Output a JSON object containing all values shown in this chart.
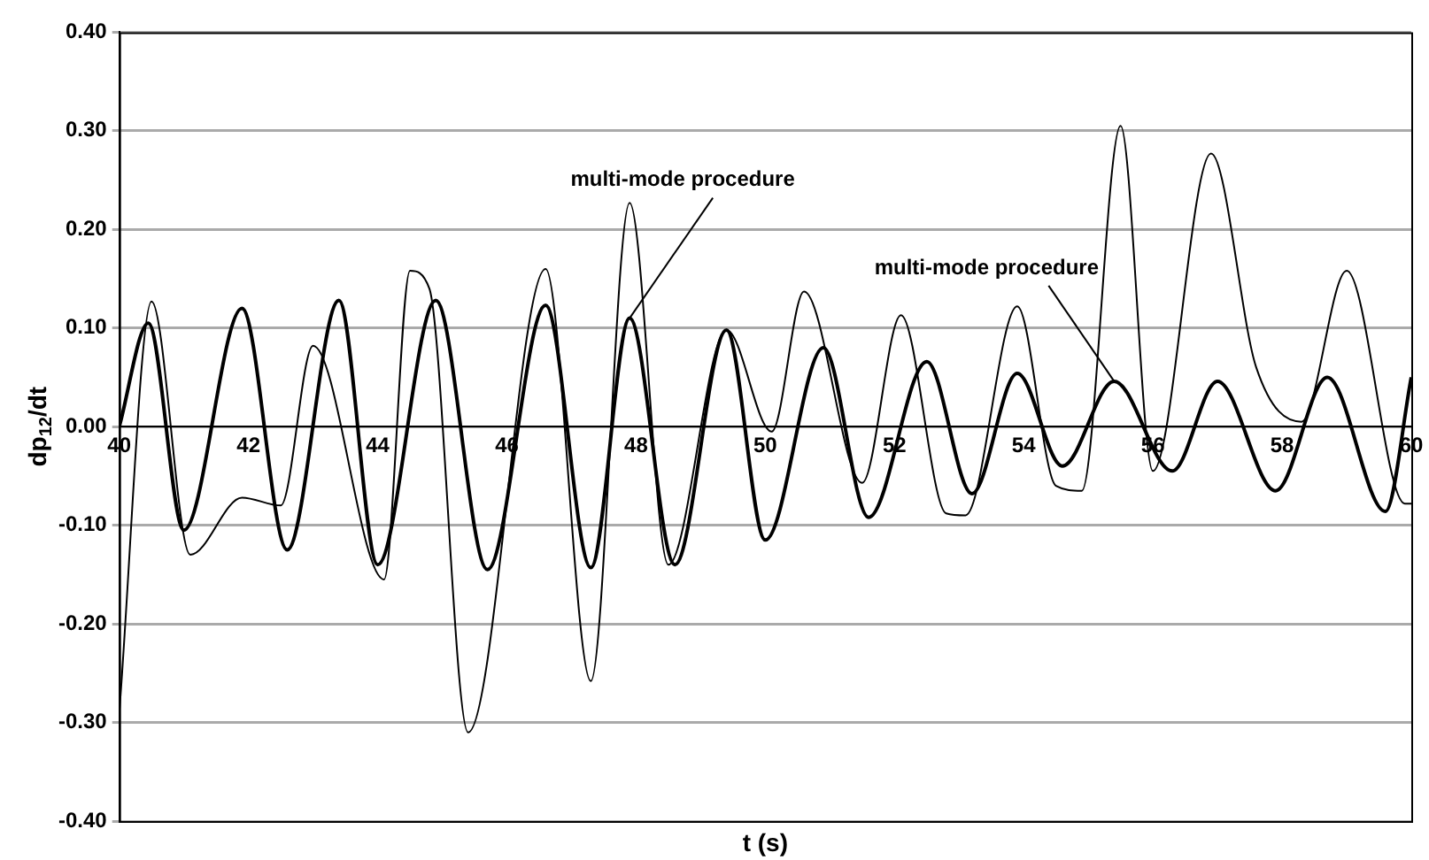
{
  "chart_data": {
    "type": "line",
    "xlabel": "t (s)",
    "ylabel": "dp$_{12}$/dt",
    "xlim": [
      40,
      60
    ],
    "xticks": [
      40,
      42,
      44,
      46,
      48,
      50,
      52,
      54,
      56,
      58,
      60
    ],
    "ylim": [
      -0.4,
      0.4
    ],
    "yticks": [
      {
        "value": -0.4,
        "label": "-0.40"
      },
      {
        "value": -0.3,
        "label": "-0.30"
      },
      {
        "value": -0.2,
        "label": "-0.20"
      },
      {
        "value": -0.1,
        "label": "-0.10"
      },
      {
        "value": 0,
        "label": "0.00"
      },
      {
        "value": 0.1,
        "label": "0.10"
      },
      {
        "value": 0.2,
        "label": "0.20"
      },
      {
        "value": 0.3,
        "label": "0.30"
      },
      {
        "value": 0.4,
        "label": "0.40"
      }
    ],
    "grid": "y",
    "legend": false,
    "marker": "none",
    "line_style": "solid",
    "series": [
      {
        "color": "#000000",
        "x": [
          40,
          40.5,
          41.1,
          41.9,
          42.5,
          43.0,
          44.1,
          44.5,
          44.8,
          45.4,
          46.6,
          47.3,
          47.9,
          48.5,
          49.4,
          50.1,
          50.6,
          51.5,
          52.1,
          52.8,
          53.1,
          53.9,
          54.5,
          54.9,
          55.5,
          56.0,
          56.9,
          57.6,
          58.3,
          59.0,
          59.9,
          60
        ],
        "values": [
          -0.29,
          0.127,
          -0.13,
          -0.072,
          -0.08,
          0.082,
          -0.155,
          0.158,
          0.14,
          -0.31,
          0.16,
          -0.258,
          0.227,
          -0.14,
          0.098,
          -0.005,
          0.137,
          -0.057,
          0.113,
          -0.088,
          -0.09,
          0.122,
          -0.06,
          -0.065,
          0.305,
          -0.045,
          0.277,
          0.06,
          0.005,
          0.158,
          -0.078,
          -0.078
        ]
      },
      {
        "color": "#000000",
        "x": [
          40,
          40.45,
          41.0,
          41.9,
          42.6,
          43.4,
          44.0,
          44.9,
          45.7,
          46.6,
          47.3,
          47.9,
          48.6,
          49.4,
          50.0,
          50.9,
          51.6,
          52.5,
          53.2,
          53.9,
          54.6,
          55.4,
          56.3,
          57.0,
          57.9,
          58.7,
          59.6,
          60
        ],
        "values": [
          0,
          0.105,
          -0.105,
          0.12,
          -0.125,
          0.128,
          -0.14,
          0.128,
          -0.145,
          0.123,
          -0.143,
          0.11,
          -0.14,
          0.098,
          -0.115,
          0.08,
          -0.092,
          0.066,
          -0.068,
          0.054,
          -0.04,
          0.046,
          -0.045,
          0.046,
          -0.065,
          0.05,
          -0.086,
          0.05
        ]
      }
    ],
    "annotations": [
      {
        "text": "multi-mode procedure",
        "x": 47.9,
        "y": 0.11
      },
      {
        "text": "multi-mode procedure",
        "x": 55.4,
        "y": 0.046
      }
    ]
  }
}
